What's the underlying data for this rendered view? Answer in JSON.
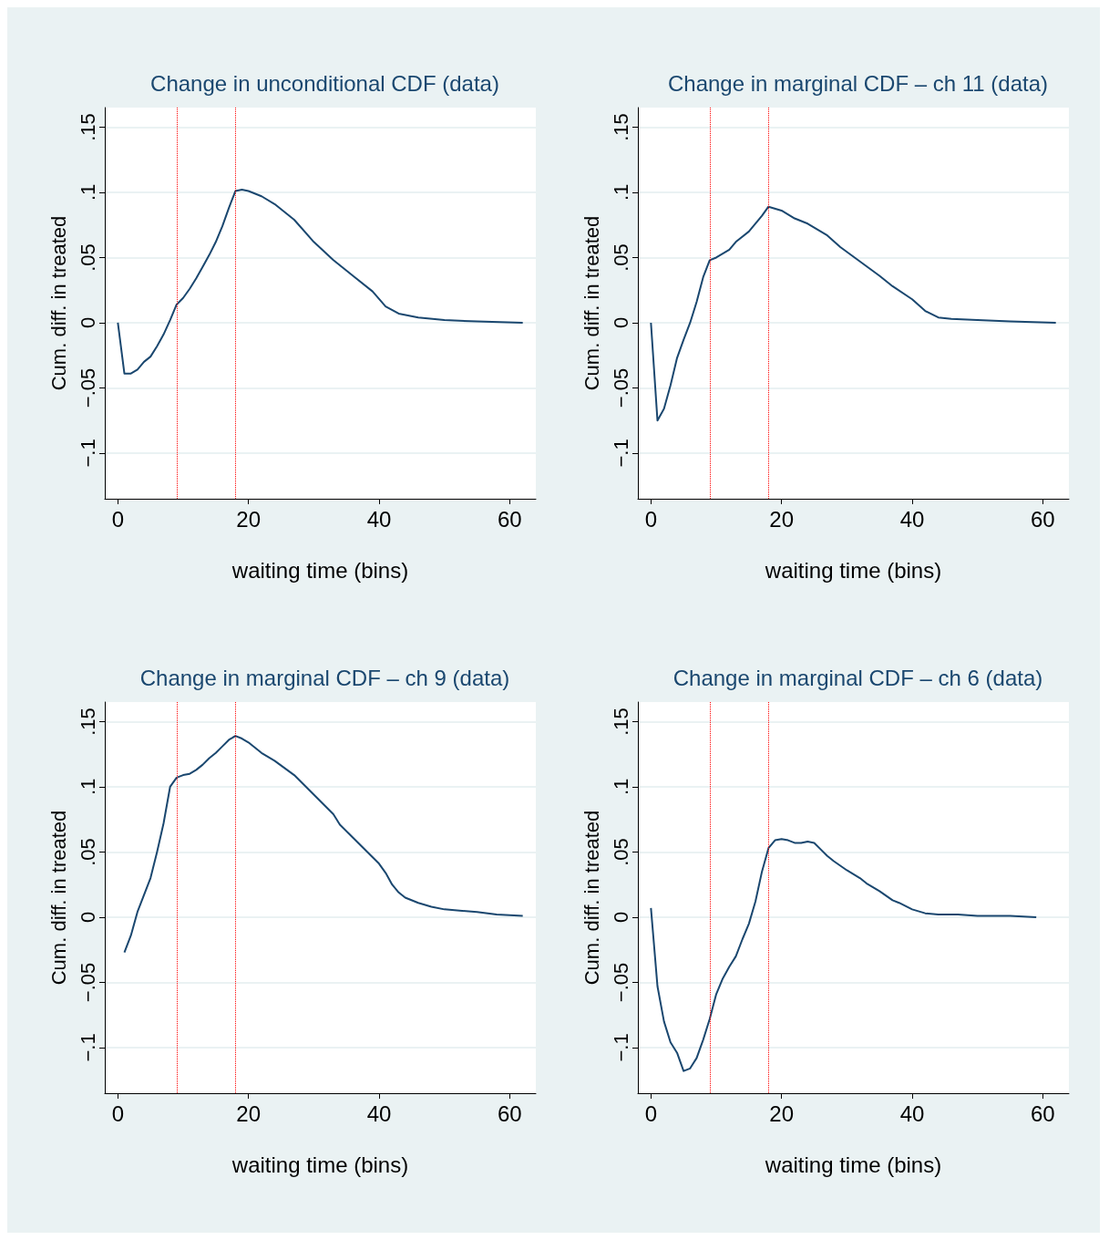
{
  "chart_data": [
    {
      "type": "line",
      "title": "Change in unconditional CDF (data)",
      "xlabel": "waiting time (bins)",
      "ylabel": "Cum. diff. in treated",
      "xlim": [
        -2,
        64
      ],
      "xticks": [
        0,
        20,
        40,
        60
      ],
      "ylim": [
        -0.135,
        0.165
      ],
      "yticks": [
        {
          "value": -0.1,
          "label": "−.1"
        },
        {
          "value": -0.05,
          "label": "−.05"
        },
        {
          "value": 0,
          "label": "0"
        },
        {
          "value": 0.05,
          "label": ".05"
        },
        {
          "value": 0.1,
          "label": ".1"
        },
        {
          "value": 0.15,
          "label": ".15"
        }
      ],
      "grid": "y",
      "marker": "none",
      "line_style": "solid",
      "series": [
        {
          "color": "#1a476f",
          "x": [
            0,
            1,
            2,
            3,
            4,
            5,
            6,
            7,
            8,
            9,
            10,
            11,
            12,
            13,
            14,
            15,
            16,
            17,
            18,
            19,
            20,
            22,
            24,
            27,
            30,
            33,
            36,
            39,
            41,
            43,
            46,
            50,
            55,
            62
          ],
          "values": [
            0,
            -0.039,
            -0.039,
            -0.036,
            -0.03,
            -0.026,
            -0.018,
            -0.009,
            0.002,
            0.014,
            0.019,
            0.026,
            0.034,
            0.043,
            0.052,
            0.062,
            0.074,
            0.088,
            0.101,
            0.102,
            0.101,
            0.097,
            0.091,
            0.079,
            0.062,
            0.048,
            0.036,
            0.024,
            0.0125,
            0.007,
            0.004,
            0.002,
            0.001,
            0
          ]
        }
      ],
      "ref_lines": [
        {
          "axis": "x",
          "value": 9,
          "color": "#ff0000",
          "line_style": "dotted"
        },
        {
          "axis": "x",
          "value": 18,
          "color": "#ff0000",
          "line_style": "dotted"
        }
      ]
    },
    {
      "type": "line",
      "title": "Change in marginal CDF – ch 11 (data)",
      "xlabel": "waiting time (bins)",
      "ylabel": "Cum. diff. in treated",
      "xlim": [
        -2,
        64
      ],
      "xticks": [
        0,
        20,
        40,
        60
      ],
      "ylim": [
        -0.135,
        0.165
      ],
      "yticks": [
        {
          "value": -0.1,
          "label": "−.1"
        },
        {
          "value": -0.05,
          "label": "−.05"
        },
        {
          "value": 0,
          "label": "0"
        },
        {
          "value": 0.05,
          "label": ".05"
        },
        {
          "value": 0.1,
          "label": ".1"
        },
        {
          "value": 0.15,
          "label": ".15"
        }
      ],
      "grid": "y",
      "marker": "none",
      "line_style": "solid",
      "series": [
        {
          "color": "#1a476f",
          "x": [
            0,
            1,
            2,
            3,
            4,
            5,
            6,
            7,
            8,
            9,
            10,
            12,
            13,
            15,
            17,
            18,
            20,
            22,
            24,
            26,
            27,
            29,
            32,
            35,
            37,
            40,
            42,
            44,
            46,
            50,
            55,
            62
          ],
          "values": [
            0,
            -0.075,
            -0.066,
            -0.048,
            -0.027,
            -0.013,
            0,
            0.016,
            0.035,
            0.048,
            0.05,
            0.056,
            0.062,
            0.07,
            0.082,
            0.089,
            0.086,
            0.08,
            0.076,
            0.07,
            0.067,
            0.058,
            0.047,
            0.036,
            0.028,
            0.018,
            0.009,
            0.004,
            0.003,
            0.002,
            0.001,
            0
          ]
        }
      ],
      "ref_lines": [
        {
          "axis": "x",
          "value": 9,
          "color": "#ff0000",
          "line_style": "dotted"
        },
        {
          "axis": "x",
          "value": 18,
          "color": "#ff0000",
          "line_style": "dotted"
        }
      ]
    },
    {
      "type": "line",
      "title": "Change in marginal CDF – ch 9 (data)",
      "xlabel": "waiting time (bins)",
      "ylabel": "Cum. diff. in treated",
      "xlim": [
        -2,
        64
      ],
      "xticks": [
        0,
        20,
        40,
        60
      ],
      "ylim": [
        -0.135,
        0.165
      ],
      "yticks": [
        {
          "value": -0.1,
          "label": "−.1"
        },
        {
          "value": -0.05,
          "label": "−.05"
        },
        {
          "value": 0,
          "label": "0"
        },
        {
          "value": 0.05,
          "label": ".05"
        },
        {
          "value": 0.1,
          "label": ".1"
        },
        {
          "value": 0.15,
          "label": ".15"
        }
      ],
      "grid": "y",
      "marker": "none",
      "line_style": "solid",
      "series": [
        {
          "color": "#1a476f",
          "x": [
            1,
            2,
            3,
            4,
            5,
            6,
            7,
            8,
            9,
            10,
            11,
            12,
            13,
            14,
            15,
            16,
            17,
            18,
            19,
            20,
            22,
            24,
            27,
            30,
            33,
            34,
            36,
            38,
            40,
            41,
            42,
            43,
            44,
            46,
            48,
            50,
            55,
            58,
            62
          ],
          "values": [
            -0.027,
            -0.014,
            0.004,
            0.017,
            0.03,
            0.05,
            0.072,
            0.1,
            0.107,
            0.109,
            0.11,
            0.113,
            0.117,
            0.122,
            0.126,
            0.131,
            0.136,
            0.139,
            0.137,
            0.134,
            0.126,
            0.12,
            0.109,
            0.094,
            0.079,
            0.071,
            0.061,
            0.051,
            0.041,
            0.034,
            0.025,
            0.019,
            0.015,
            0.011,
            0.008,
            0.006,
            0.004,
            0.002,
            0.001
          ]
        }
      ],
      "ref_lines": [
        {
          "axis": "x",
          "value": 9,
          "color": "#ff0000",
          "line_style": "dotted"
        },
        {
          "axis": "x",
          "value": 18,
          "color": "#ff0000",
          "line_style": "dotted"
        }
      ]
    },
    {
      "type": "line",
      "title": "Change in marginal CDF – ch 6 (data)",
      "xlabel": "waiting time (bins)",
      "ylabel": "Cum. diff. in treated",
      "xlim": [
        -2,
        64
      ],
      "xticks": [
        0,
        20,
        40,
        60
      ],
      "ylim": [
        -0.135,
        0.165
      ],
      "yticks": [
        {
          "value": -0.1,
          "label": "−.1"
        },
        {
          "value": -0.05,
          "label": "−.05"
        },
        {
          "value": 0,
          "label": "0"
        },
        {
          "value": 0.05,
          "label": ".05"
        },
        {
          "value": 0.1,
          "label": ".1"
        },
        {
          "value": 0.15,
          "label": ".15"
        }
      ],
      "grid": "y",
      "marker": "none",
      "line_style": "solid",
      "series": [
        {
          "color": "#1a476f",
          "x": [
            0,
            1,
            2,
            3,
            4,
            5,
            6,
            7,
            8,
            9,
            10,
            11,
            12,
            13,
            14,
            15,
            16,
            17,
            18,
            19,
            20,
            21,
            22,
            23,
            24,
            25,
            26,
            27,
            28,
            30,
            32,
            33,
            35,
            37,
            38,
            40,
            42,
            44,
            47,
            50,
            55,
            59
          ],
          "values": [
            0.007,
            -0.053,
            -0.08,
            -0.096,
            -0.104,
            -0.118,
            -0.116,
            -0.108,
            -0.094,
            -0.078,
            -0.059,
            -0.047,
            -0.038,
            -0.03,
            -0.017,
            -0.005,
            0.012,
            0.035,
            0.053,
            0.059,
            0.06,
            0.059,
            0.057,
            0.057,
            0.058,
            0.057,
            0.052,
            0.047,
            0.043,
            0.036,
            0.03,
            0.026,
            0.02,
            0.013,
            0.011,
            0.006,
            0.003,
            0.002,
            0.002,
            0.001,
            0.001,
            0
          ]
        }
      ],
      "ref_lines": [
        {
          "axis": "x",
          "value": 9,
          "color": "#ff0000",
          "line_style": "dotted"
        },
        {
          "axis": "x",
          "value": 18,
          "color": "#ff0000",
          "line_style": "dotted"
        }
      ]
    }
  ]
}
